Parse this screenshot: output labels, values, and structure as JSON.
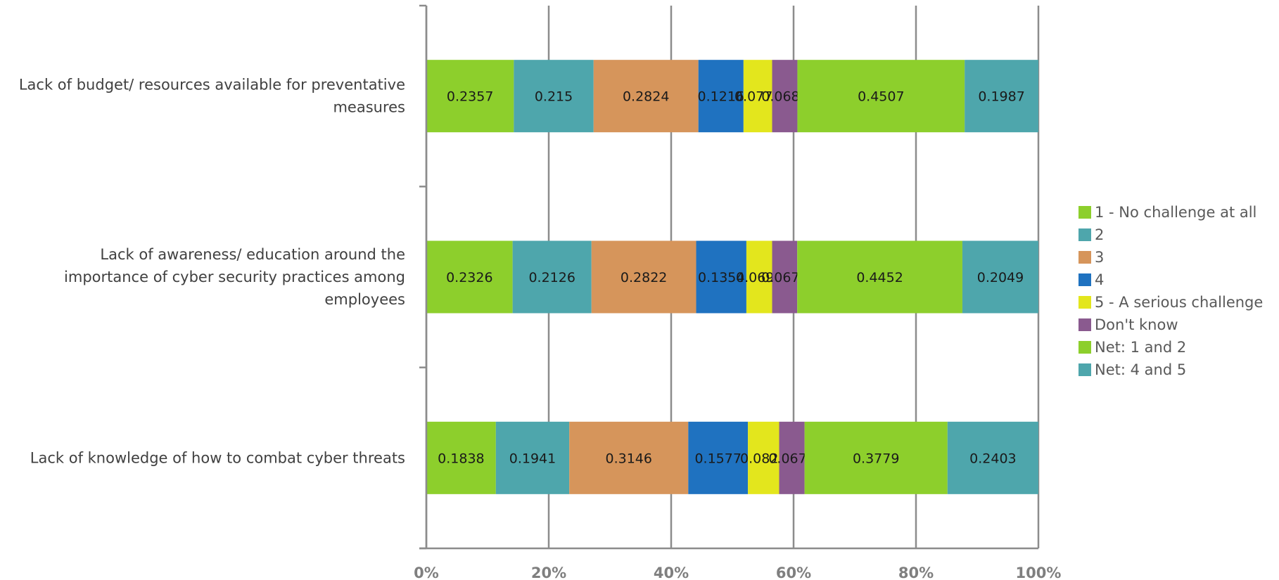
{
  "chart_data": {
    "type": "bar",
    "orientation": "horizontal",
    "stacked": "percent",
    "categories": [
      [
        "Lack of budget/ resources available for preventative",
        "measures"
      ],
      [
        "Lack of awareness/ education around the",
        "importance of cyber security practices among",
        "employees"
      ],
      [
        "Lack of knowledge of how to combat cyber threats"
      ]
    ],
    "series": [
      {
        "name": "1 - No challenge at all",
        "color": "#8dcf2c",
        "values": [
          0.2357,
          0.2326,
          0.1838
        ]
      },
      {
        "name": "2",
        "color": "#4ea6ac",
        "values": [
          0.215,
          0.2126,
          0.1941
        ]
      },
      {
        "name": "3",
        "color": "#d6955b",
        "values": [
          0.2824,
          0.2822,
          0.3146
        ]
      },
      {
        "name": "4",
        "color": "#1f72c0",
        "values": [
          0.1216,
          0.1354,
          0.1577
        ]
      },
      {
        "name": "5 - A serious challenge",
        "color": "#e3e61d",
        "values": [
          0.0771,
          0.0694,
          0.0826
        ]
      },
      {
        "name": "Don't know",
        "color": "#8a5a8f",
        "values": [
          0.0681,
          0.0677,
          0.0672
        ]
      },
      {
        "name": "Net: 1 and 2",
        "color": "#8dcf2c",
        "values": [
          0.4507,
          0.4452,
          0.3779
        ]
      },
      {
        "name": "Net: 4 and 5",
        "color": "#4ea6ac",
        "values": [
          0.1987,
          0.2049,
          0.2403
        ]
      }
    ],
    "x_ticks": [
      "0%",
      "20%",
      "40%",
      "60%",
      "80%",
      "100%"
    ],
    "xlim": [
      0,
      100
    ],
    "grid": true,
    "legend_position": "right",
    "title": "",
    "xlabel": "",
    "ylabel": ""
  }
}
